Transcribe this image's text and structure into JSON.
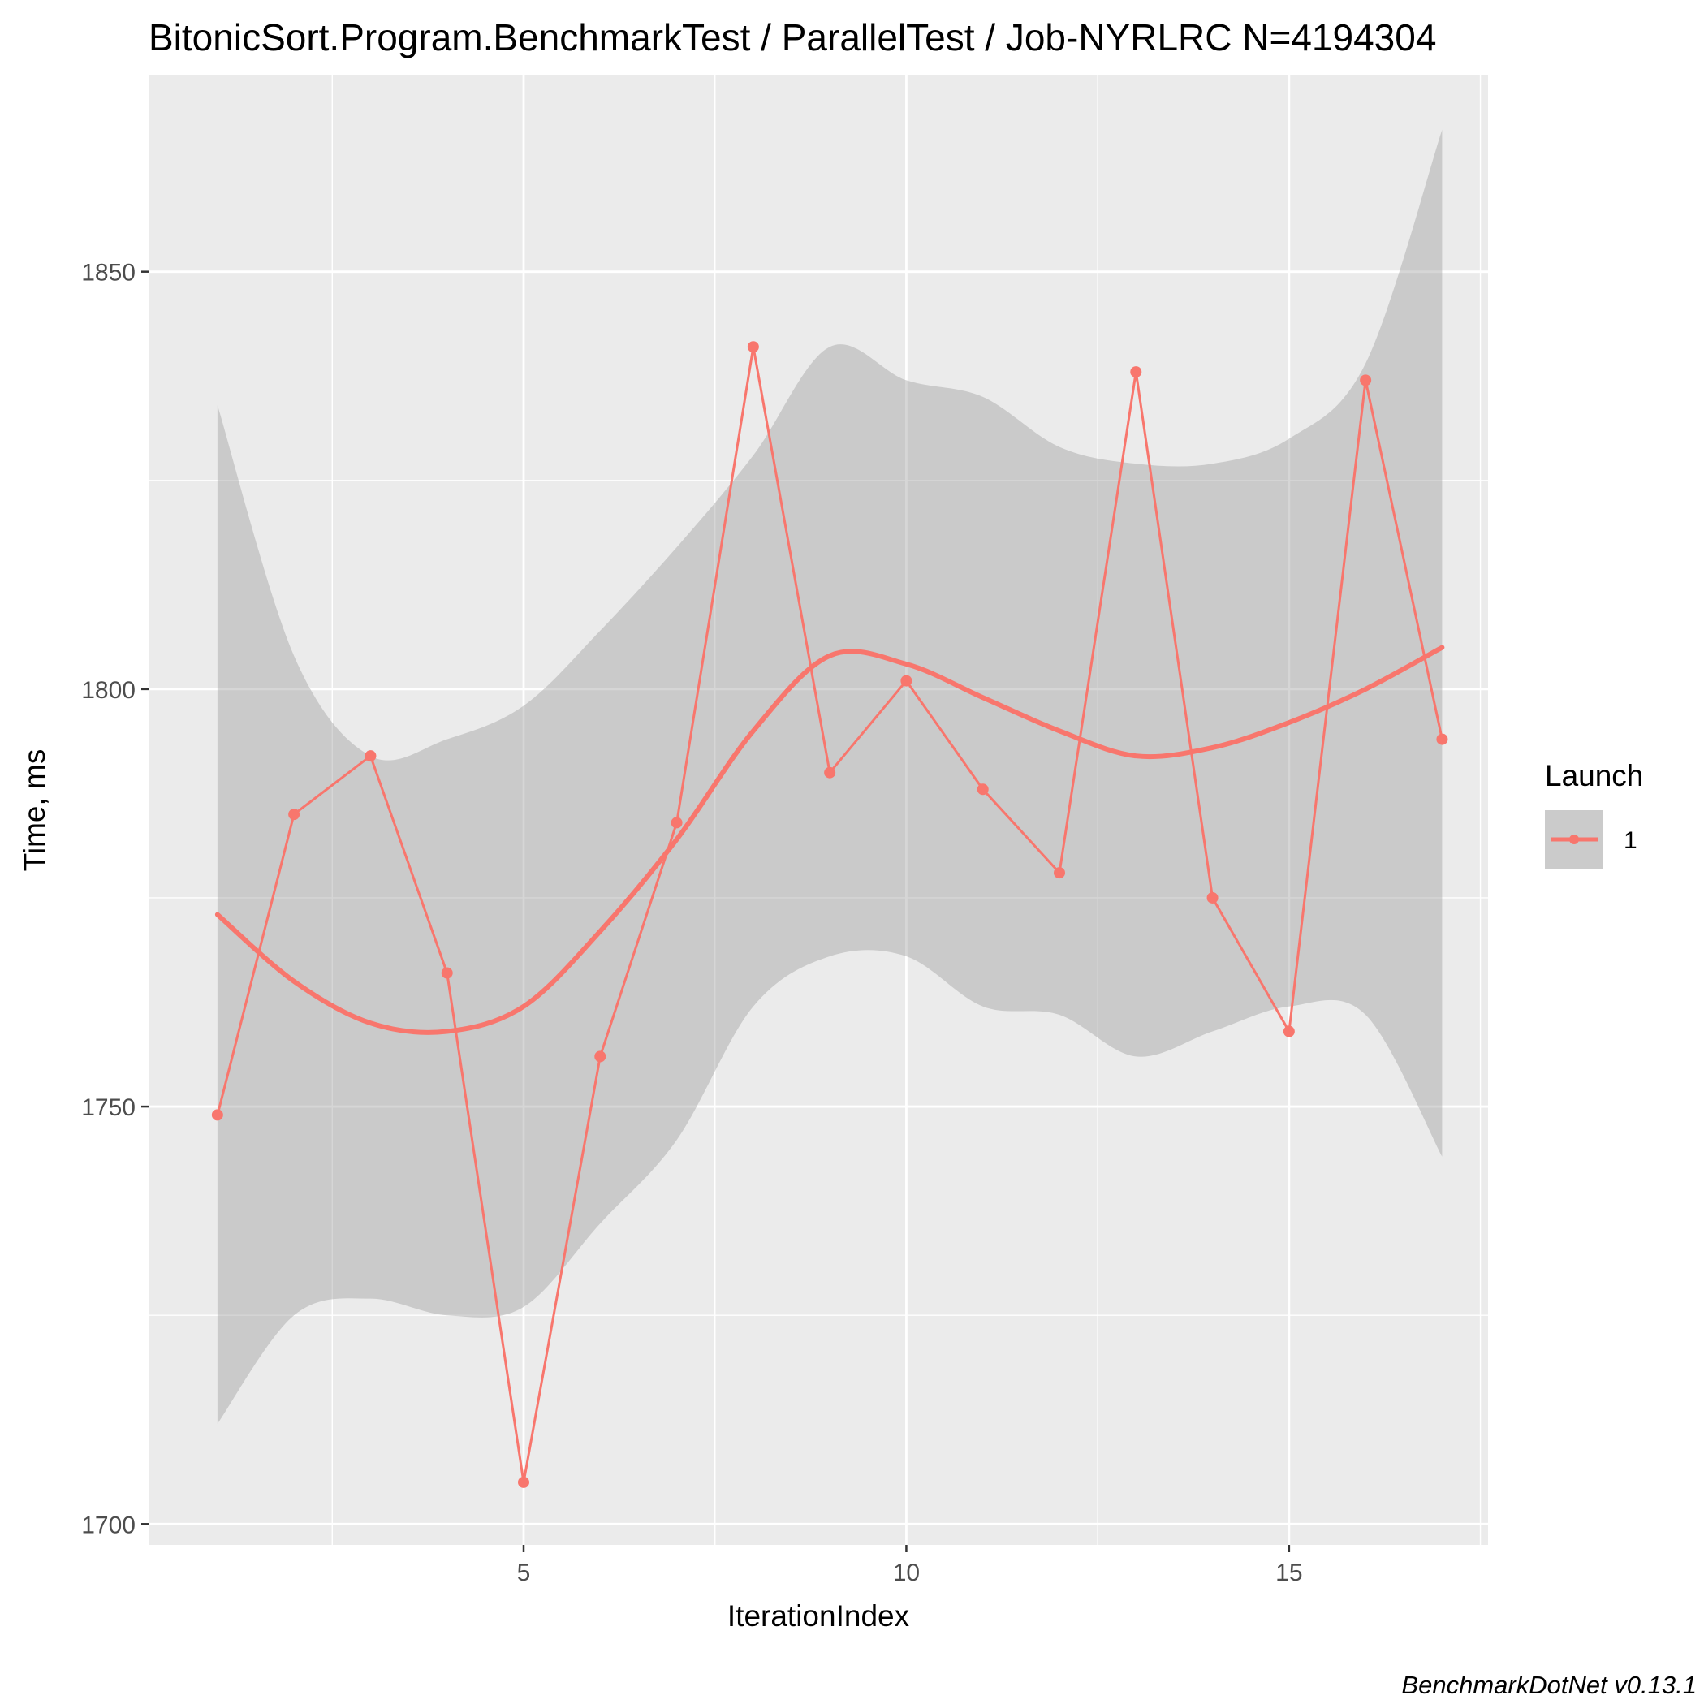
{
  "chart_data": {
    "type": "line",
    "title": "BitonicSort.Program.BenchmarkTest / ParallelTest / Job-NYRLRC N=4194304",
    "xlabel": "IterationIndex",
    "ylabel": "Time, ms",
    "xlim": [
      0.1,
      17.6
    ],
    "ylim": [
      1697.5,
      1873.5
    ],
    "x_ticks": [
      5,
      10,
      15
    ],
    "x_tick_labels": [
      "5",
      "10",
      "15"
    ],
    "y_ticks": [
      1700,
      1750,
      1800,
      1850
    ],
    "y_tick_labels": [
      "1700",
      "1750",
      "1800",
      "1850"
    ],
    "grid": true,
    "legend": {
      "title": "Launch",
      "entries": [
        "1"
      ],
      "position": "right"
    },
    "caption": "BenchmarkDotNet v0.13.1",
    "colors": {
      "series": "#F8766D",
      "band": "#999999",
      "panel": "#EBEBEB",
      "grid": "#FFFFFF"
    },
    "series": [
      {
        "name": "1",
        "x": [
          1,
          2,
          3,
          4,
          5,
          6,
          7,
          8,
          9,
          10,
          11,
          12,
          13,
          14,
          15,
          16,
          17
        ],
        "y": [
          1749,
          1785,
          1792,
          1766,
          1705,
          1756,
          1784,
          1841,
          1790,
          1801,
          1788,
          1778,
          1838,
          1775,
          1759,
          1837,
          1794
        ]
      }
    ],
    "smooth": {
      "x": [
        1,
        2,
        3,
        4,
        5,
        6,
        7,
        8,
        9,
        10,
        11,
        12,
        13,
        14,
        15,
        16,
        17
      ],
      "y": [
        1773,
        1765,
        1760,
        1759,
        1762,
        1771,
        1782,
        1795,
        1804,
        1803,
        1799,
        1795,
        1792,
        1793,
        1796,
        1800,
        1805
      ],
      "ymin": [
        1712,
        1725,
        1727,
        1725,
        1726,
        1736,
        1746,
        1762,
        1768,
        1768,
        1762,
        1761,
        1756,
        1759,
        1762,
        1761,
        1744
      ],
      "ymax": [
        1834,
        1804,
        1792,
        1794,
        1798,
        1807,
        1817,
        1828,
        1841,
        1837,
        1835,
        1829,
        1827,
        1827,
        1830,
        1839,
        1867
      ]
    }
  }
}
